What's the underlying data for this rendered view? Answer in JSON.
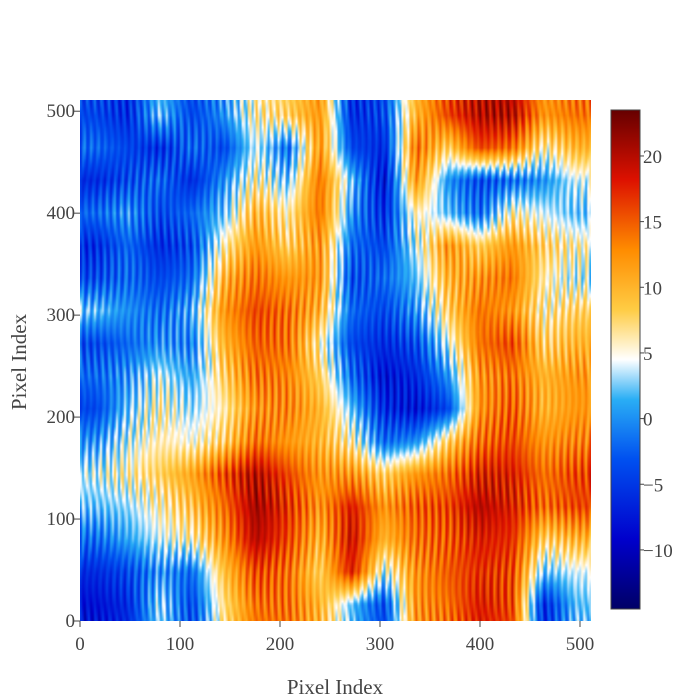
{
  "chart_data": {
    "type": "heatmap",
    "title": "",
    "xlabel": "Pixel Index",
    "ylabel": "Pixel Index",
    "x_range": [
      0,
      511
    ],
    "y_range": [
      0,
      511
    ],
    "x_ticks": [
      0,
      100,
      200,
      300,
      400,
      500
    ],
    "y_ticks": [
      0,
      100,
      200,
      300,
      400,
      500
    ],
    "x_tick_labels": [
      "0",
      "100",
      "200",
      "300",
      "400",
      "500"
    ],
    "y_tick_labels": [
      "0",
      "100",
      "200",
      "300",
      "400",
      "500"
    ],
    "grid": false,
    "colorbar": {
      "min": -14.5,
      "max": 23.5,
      "ticks": [
        -10,
        -5,
        0,
        5,
        10,
        15,
        20
      ],
      "tick_labels": [
        "−10",
        "−5",
        "0",
        "5",
        "10",
        "15",
        "20"
      ],
      "position": "right",
      "colorscale": [
        [
          0.0,
          "#000066"
        ],
        [
          0.14,
          "#0000cc"
        ],
        [
          0.3,
          "#0050f0"
        ],
        [
          0.42,
          "#2aaef5"
        ],
        [
          0.5,
          "#ffffff"
        ],
        [
          0.6,
          "#ffcc44"
        ],
        [
          0.72,
          "#ff8c00"
        ],
        [
          0.86,
          "#dd1100"
        ],
        [
          1.0,
          "#660000"
        ]
      ]
    },
    "grid_resolution": [
      16,
      16
    ],
    "grid_axis_centers": [
      16,
      48,
      80,
      112,
      144,
      176,
      208,
      240,
      272,
      304,
      336,
      368,
      400,
      432,
      464,
      496
    ],
    "z_approx": [
      [
        -8,
        -6,
        3,
        -4,
        7,
        14,
        14,
        10,
        2,
        -4,
        12,
        14,
        18,
        16,
        -6,
        2
      ],
      [
        -6,
        -4,
        0,
        -2,
        9,
        16,
        14,
        8,
        18,
        4,
        12,
        15,
        17,
        16,
        2,
        4
      ],
      [
        -2,
        1,
        4,
        6,
        12,
        20,
        16,
        10,
        19,
        10,
        14,
        15,
        18,
        17,
        8,
        10
      ],
      [
        2,
        3,
        6,
        9,
        14,
        21,
        17,
        12,
        18,
        12,
        15,
        16,
        20,
        18,
        14,
        16
      ],
      [
        4,
        6,
        8,
        11,
        16,
        20,
        16,
        12,
        12,
        8,
        12,
        14,
        18,
        18,
        14,
        16
      ],
      [
        0,
        4,
        6,
        5,
        8,
        14,
        12,
        10,
        6,
        -2,
        0,
        8,
        14,
        16,
        12,
        13
      ],
      [
        -4,
        2,
        6,
        3,
        6,
        12,
        13,
        10,
        2,
        -6,
        -8,
        -4,
        12,
        15,
        10,
        12
      ],
      [
        -2,
        0,
        4,
        1,
        8,
        14,
        13,
        8,
        -2,
        -8,
        -6,
        0,
        12,
        14,
        10,
        12
      ],
      [
        -4,
        -2,
        0,
        -1,
        10,
        15,
        14,
        6,
        -4,
        -6,
        -4,
        4,
        14,
        16,
        8,
        10
      ],
      [
        2,
        0,
        -2,
        1,
        12,
        16,
        14,
        10,
        -2,
        -4,
        0,
        8,
        14,
        12,
        6,
        8
      ],
      [
        -4,
        -2,
        -4,
        -2,
        10,
        14,
        12,
        12,
        -4,
        -2,
        2,
        10,
        12,
        14,
        6,
        4
      ],
      [
        -6,
        -2,
        -6,
        -4,
        6,
        12,
        8,
        12,
        -2,
        -4,
        4,
        12,
        8,
        12,
        8,
        6
      ],
      [
        -2,
        0,
        -4,
        -2,
        2,
        10,
        6,
        14,
        0,
        -6,
        6,
        2,
        -2,
        6,
        4,
        2
      ],
      [
        -6,
        -4,
        -2,
        -6,
        0,
        6,
        2,
        14,
        2,
        -8,
        12,
        0,
        -4,
        -2,
        0,
        4
      ],
      [
        -2,
        -4,
        -6,
        -2,
        -4,
        4,
        -2,
        12,
        -4,
        -6,
        14,
        8,
        16,
        14,
        6,
        10
      ],
      [
        -4,
        -6,
        2,
        -4,
        0,
        6,
        8,
        12,
        -6,
        -4,
        10,
        16,
        20,
        20,
        12,
        14
      ]
    ]
  }
}
